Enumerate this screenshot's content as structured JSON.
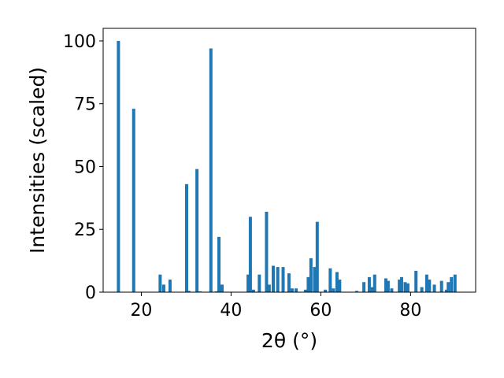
{
  "chart_data": {
    "type": "bar",
    "xlabel": "2θ (°)",
    "ylabel": "Intensities (scaled)",
    "xlim": [
      11.5,
      94.5
    ],
    "ylim": [
      0,
      105
    ],
    "xticks": [
      20,
      40,
      60,
      80
    ],
    "yticks": [
      0,
      25,
      50,
      75,
      100
    ],
    "grid": false,
    "bar_color": "#1f77b4",
    "bar_width": 0.7,
    "series": [
      {
        "x": [
          14.9,
          18.3,
          24.2,
          25.0,
          26.4,
          30.1,
          30.6,
          32.4,
          33.1,
          35.5,
          36.7,
          37.3,
          38.0,
          43.8,
          44.3,
          45.0,
          46.3,
          47.9,
          48.5,
          49.4,
          50.4,
          51.6,
          52.9,
          53.6,
          54.5,
          56.6,
          57.2,
          57.8,
          58.6,
          59.2,
          61.0,
          62.1,
          62.8,
          63.6,
          64.2,
          68.0,
          69.6,
          70.8,
          71.4,
          72.0,
          74.5,
          75.0,
          75.8,
          77.5,
          78.0,
          78.8,
          79.4,
          81.2,
          82.5,
          83.6,
          84.2,
          85.3,
          86.9,
          88.0,
          88.4,
          89.1,
          89.9
        ],
        "values": [
          100.0,
          73.0,
          7.0,
          3.0,
          5.0,
          43.0,
          0.5,
          49.0,
          0.3,
          97.0,
          0.3,
          22.0,
          3.0,
          7.0,
          30.0,
          1.0,
          7.0,
          32.0,
          3.0,
          10.5,
          10.0,
          10.0,
          7.5,
          1.5,
          1.5,
          1.0,
          6.0,
          13.5,
          10.0,
          28.0,
          1.0,
          9.5,
          1.5,
          8.0,
          5.0,
          0.5,
          4.0,
          6.0,
          2.0,
          7.0,
          5.5,
          4.5,
          1.5,
          5.0,
          6.0,
          4.0,
          3.5,
          8.5,
          2.0,
          7.0,
          5.0,
          3.0,
          4.5,
          1.0,
          4.0,
          6.0,
          7.0
        ]
      }
    ]
  }
}
